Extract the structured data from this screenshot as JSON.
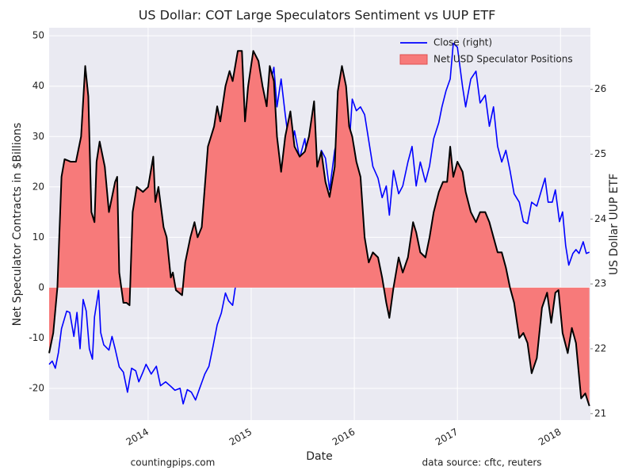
{
  "chart_data": {
    "type": "line-area",
    "title": "US Dollar: COT Large Speculators Sentiment vs UUP ETF",
    "x_label": "Date",
    "y_label": "Net Speculator Contracts in $Billions",
    "y2_label": "US Dollar UUP ETF",
    "footnotes": [
      "countingpips.com",
      "data source: cftc, reuters"
    ],
    "xlim": [
      2013.04,
      2018.29
    ],
    "xticks": [
      2014,
      2015,
      2016,
      2017,
      2018
    ],
    "ylim": [
      -26.3,
      51.6
    ],
    "yticks": [
      -20,
      -10,
      0,
      10,
      20,
      30,
      40,
      50
    ],
    "y2lim": [
      20.9,
      26.95
    ],
    "y2ticks": [
      21,
      22,
      23,
      24,
      25,
      26
    ],
    "grid": true,
    "legend": "upper right",
    "series": [
      {
        "name": "Close (right)",
        "color": "#0000ff",
        "axis": "y2",
        "x": [
          2013.04,
          2013.07,
          2013.1,
          2013.13,
          2013.16,
          2013.21,
          2013.24,
          2013.28,
          2013.31,
          2013.34,
          2013.37,
          2013.4,
          2013.43,
          2013.46,
          2013.48,
          2013.52,
          2013.54,
          2013.57,
          2013.62,
          2013.65,
          2013.68,
          2013.72,
          2013.76,
          2013.8,
          2013.84,
          2013.88,
          2013.91,
          2013.95,
          2013.98,
          2014.03,
          2014.08,
          2014.12,
          2014.17,
          2014.22,
          2014.26,
          2014.31,
          2014.34,
          2014.38,
          2014.42,
          2014.46,
          2014.5,
          2014.55,
          2014.59,
          2014.63,
          2014.67,
          2014.71,
          2014.75,
          2014.78,
          2014.82,
          2014.86,
          2014.91,
          2014.95,
          2014.98,
          2015.02,
          2015.07,
          2015.11,
          2015.15,
          2015.18,
          2015.22,
          2015.25,
          2015.29,
          2015.33,
          2015.38,
          2015.42,
          2015.47,
          2015.52,
          2015.56,
          2015.61,
          2015.64,
          2015.68,
          2015.72,
          2015.76,
          2015.81,
          2015.84,
          2015.88,
          2015.92,
          2015.95,
          2015.98,
          2016.02,
          2016.06,
          2016.1,
          2016.14,
          2016.18,
          2016.23,
          2016.27,
          2016.31,
          2016.34,
          2016.38,
          2016.43,
          2016.47,
          2016.52,
          2016.56,
          2016.6,
          2016.64,
          2016.69,
          2016.73,
          2016.77,
          2016.82,
          2016.85,
          2016.89,
          2016.93,
          2016.96,
          2017.0,
          2017.05,
          2017.08,
          2017.13,
          2017.18,
          2017.22,
          2017.27,
          2017.31,
          2017.35,
          2017.39,
          2017.43,
          2017.47,
          2017.51,
          2017.55,
          2017.6,
          2017.64,
          2017.68,
          2017.72,
          2017.77,
          2017.82,
          2017.85,
          2017.88,
          2017.92,
          2017.95,
          2017.99,
          2018.02,
          2018.05,
          2018.08,
          2018.12,
          2018.15,
          2018.18,
          2018.22,
          2018.25,
          2018.28
        ],
        "values": [
          21.76,
          21.81,
          21.7,
          21.94,
          22.31,
          22.58,
          22.56,
          22.19,
          22.56,
          22.0,
          22.76,
          22.58,
          22.0,
          21.84,
          22.49,
          22.9,
          22.25,
          22.06,
          21.98,
          22.19,
          22.0,
          21.72,
          21.64,
          21.33,
          21.7,
          21.66,
          21.49,
          21.64,
          21.76,
          21.61,
          21.73,
          21.43,
          21.49,
          21.42,
          21.36,
          21.39,
          21.15,
          21.37,
          21.33,
          21.21,
          21.39,
          21.61,
          21.73,
          22.04,
          22.37,
          22.55,
          22.86,
          22.74,
          22.67,
          23.1,
          23.41,
          23.45,
          23.84,
          24.33,
          24.88,
          25.06,
          25.36,
          26.04,
          26.34,
          25.73,
          26.16,
          25.61,
          25.0,
          25.36,
          24.94,
          25.24,
          24.75,
          25.67,
          24.57,
          25.06,
          24.94,
          24.45,
          25.06,
          25.24,
          25.94,
          25.67,
          25.12,
          25.85,
          25.67,
          25.73,
          25.61,
          25.21,
          24.81,
          24.63,
          24.33,
          24.51,
          24.06,
          24.75,
          24.39,
          24.51,
          24.88,
          25.12,
          24.51,
          24.88,
          24.57,
          24.82,
          25.24,
          25.49,
          25.73,
          25.98,
          26.16,
          26.71,
          26.65,
          26.04,
          25.73,
          26.16,
          26.28,
          25.79,
          25.91,
          25.43,
          25.73,
          25.12,
          24.88,
          25.06,
          24.75,
          24.39,
          24.26,
          23.96,
          23.93,
          24.26,
          24.2,
          24.47,
          24.63,
          24.26,
          24.26,
          24.45,
          23.96,
          24.11,
          23.59,
          23.29,
          23.47,
          23.53,
          23.47,
          23.65,
          23.47,
          23.49
        ]
      },
      {
        "name": "Net USD Speculator Positions",
        "color": "#f77a7a",
        "line_color": "#000000",
        "x": [
          2013.04,
          2013.08,
          2013.12,
          2013.16,
          2013.19,
          2013.25,
          2013.3,
          2013.35,
          2013.39,
          2013.42,
          2013.45,
          2013.48,
          2013.5,
          2013.53,
          2013.58,
          2013.62,
          2013.68,
          2013.7,
          2013.72,
          2013.76,
          2013.79,
          2013.82,
          2013.85,
          2013.89,
          2013.95,
          2014.0,
          2014.05,
          2014.07,
          2014.1,
          2014.15,
          2014.18,
          2014.22,
          2014.24,
          2014.27,
          2014.33,
          2014.36,
          2014.41,
          2014.45,
          2014.48,
          2014.52,
          2014.58,
          2014.64,
          2014.67,
          2014.7,
          2014.75,
          2014.79,
          2014.82,
          2014.87,
          2014.91,
          2014.94,
          2014.97,
          2015.02,
          2015.07,
          2015.11,
          2015.15,
          2015.18,
          2015.22,
          2015.25,
          2015.29,
          2015.33,
          2015.38,
          2015.42,
          2015.47,
          2015.52,
          2015.56,
          2015.61,
          2015.64,
          2015.68,
          2015.72,
          2015.76,
          2015.81,
          2015.84,
          2015.88,
          2015.92,
          2015.95,
          2015.98,
          2016.02,
          2016.06,
          2016.1,
          2016.14,
          2016.18,
          2016.23,
          2016.27,
          2016.31,
          2016.34,
          2016.38,
          2016.43,
          2016.47,
          2016.52,
          2016.57,
          2016.6,
          2016.64,
          2016.69,
          2016.73,
          2016.77,
          2016.82,
          2016.86,
          2016.9,
          2016.93,
          2016.96,
          2017.0,
          2017.05,
          2017.08,
          2017.13,
          2017.18,
          2017.22,
          2017.27,
          2017.31,
          2017.35,
          2017.39,
          2017.43,
          2017.47,
          2017.51,
          2017.55,
          2017.6,
          2017.64,
          2017.68,
          2017.72,
          2017.77,
          2017.82,
          2017.87,
          2017.91,
          2017.95,
          2017.98,
          2018.02,
          2018.07,
          2018.11,
          2018.15,
          2018.2,
          2018.24,
          2018.28
        ],
        "values": [
          -13,
          -9,
          0,
          22,
          25.5,
          25,
          25,
          30,
          44,
          38,
          15,
          13,
          25,
          29,
          24,
          15,
          21,
          22,
          3,
          -3,
          -3,
          -3.5,
          15,
          20,
          19,
          20,
          26,
          17,
          20,
          12,
          10,
          2,
          3,
          -0.5,
          -1.5,
          5,
          10,
          13,
          10,
          12,
          28,
          32,
          36,
          33,
          40,
          43,
          41,
          47,
          47,
          33,
          40,
          47,
          45,
          40,
          36,
          44,
          41,
          30,
          23,
          30,
          35,
          28,
          26,
          27,
          30,
          37,
          24,
          27,
          21,
          18,
          24,
          39,
          44,
          40,
          32,
          30,
          25,
          22,
          10,
          5,
          7,
          6,
          2,
          -3,
          -6,
          0,
          6,
          3,
          6,
          13,
          11,
          7,
          6,
          10,
          15,
          19,
          21,
          21,
          28,
          22,
          25,
          23,
          19,
          15,
          13,
          15,
          15,
          13,
          10,
          7,
          7,
          4,
          0,
          -3,
          -10,
          -9,
          -11,
          -17,
          -14,
          -4,
          -1,
          -7,
          -1,
          -0.5,
          -9,
          -13,
          -8,
          -11,
          -22,
          -21,
          -23.5
        ]
      }
    ]
  }
}
